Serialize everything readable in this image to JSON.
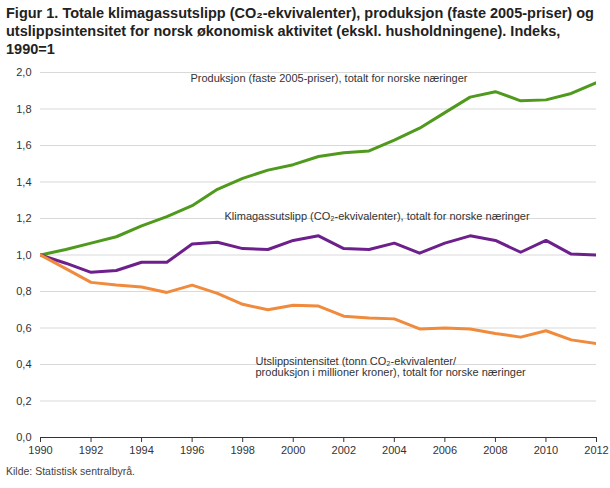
{
  "chart_data": {
    "type": "line",
    "title": "Figur 1. Totale klimagassutslipp (CO₂-ekvivalenter), produksjon (faste 2005-priser) og utslippsintensitet for norsk økonomisk aktivitet (ekskl. husholdningene). Indeks, 1990=1",
    "caption": "Kilde: Statistisk sentralbyrå.",
    "x": [
      1990,
      1991,
      1992,
      1993,
      1994,
      1995,
      1996,
      1997,
      1998,
      1999,
      2000,
      2001,
      2002,
      2003,
      2004,
      2005,
      2006,
      2007,
      2008,
      2009,
      2010,
      2011,
      2012
    ],
    "series": [
      {
        "name": "Produksjon (faste 2005-priser), totalt for norske næringer",
        "color": "#4f9a1c",
        "values": [
          1.0,
          1.03,
          1.065,
          1.1,
          1.16,
          1.21,
          1.27,
          1.36,
          1.42,
          1.465,
          1.495,
          1.54,
          1.56,
          1.57,
          1.63,
          1.695,
          1.78,
          1.865,
          1.895,
          1.845,
          1.85,
          1.885,
          1.945
        ]
      },
      {
        "name": "Klimagassutslipp (CO₂-ekvivalenter), totalt for norske næringer",
        "color": "#6d1f8c",
        "values": [
          1.0,
          0.955,
          0.905,
          0.915,
          0.96,
          0.96,
          1.06,
          1.07,
          1.035,
          1.03,
          1.08,
          1.105,
          1.035,
          1.03,
          1.065,
          1.01,
          1.065,
          1.105,
          1.08,
          1.015,
          1.08,
          1.005,
          1.0
        ]
      },
      {
        "name": "Utslippsintensitet (tonn CO₂-ekvivalenter/ produksjon i millioner kroner), totalt for norske næringer",
        "color": "#f08a3c",
        "values": [
          1.0,
          0.925,
          0.85,
          0.835,
          0.825,
          0.795,
          0.835,
          0.79,
          0.73,
          0.7,
          0.725,
          0.72,
          0.665,
          0.655,
          0.65,
          0.595,
          0.6,
          0.595,
          0.57,
          0.55,
          0.585,
          0.535,
          0.515
        ]
      }
    ],
    "xlim": [
      1990,
      2012
    ],
    "xticks": [
      1990,
      1992,
      1994,
      1996,
      1998,
      2000,
      2002,
      2004,
      2006,
      2008,
      2010,
      2012
    ],
    "ylim": [
      0,
      2
    ],
    "yticks": [
      {
        "value": 0,
        "label": "0,0"
      },
      {
        "value": 0.2,
        "label": "0,2"
      },
      {
        "value": 0.4,
        "label": "0,4"
      },
      {
        "value": 0.6,
        "label": "0,6"
      },
      {
        "value": 0.8,
        "label": "0,8"
      },
      {
        "value": 1,
        "label": "1,0"
      },
      {
        "value": 1.2,
        "label": "1,2"
      },
      {
        "value": 1.4,
        "label": "1,4"
      },
      {
        "value": 1.6,
        "label": "1,6"
      },
      {
        "value": 1.8,
        "label": "1,8"
      },
      {
        "value": 2,
        "label": "2,0"
      }
    ],
    "grid": true
  }
}
